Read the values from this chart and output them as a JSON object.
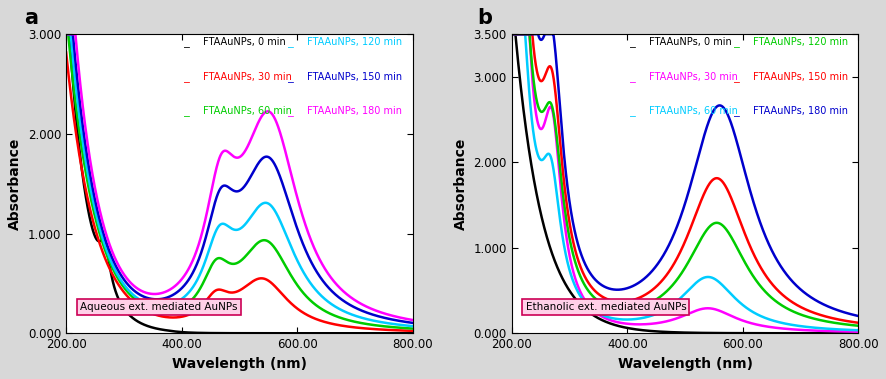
{
  "panel_a": {
    "label": "a",
    "xlabel": "Wavelength (nm)",
    "ylabel": "Absorbance",
    "xlim": [
      200,
      800
    ],
    "ylim": [
      0.0,
      3.0
    ],
    "yticks": [
      0.0,
      1.0,
      2.0,
      3.0
    ],
    "ytick_labels": [
      "0.000",
      "1.000",
      "2.000",
      "3.000"
    ],
    "xticks": [
      200,
      400,
      600,
      800
    ],
    "xtick_labels": [
      "200.00",
      "400.00",
      "600.00",
      "800.00"
    ],
    "box_label": "Aqueous ext. mediated AuNPs",
    "series": [
      {
        "label": "FTAAuNPs, 0 min",
        "color": "#000000"
      },
      {
        "label": "FTAAuNPs, 30 min",
        "color": "#ff0000"
      },
      {
        "label": "FTAAuNPs, 60 min",
        "color": "#00cc00"
      },
      {
        "label": "FTAAuNPs, 120 min",
        "color": "#00ccff"
      },
      {
        "label": "FTAAuNPs, 150 min",
        "color": "#0000cc"
      },
      {
        "label": "FTAAuNPs, 180 min",
        "color": "#ff00ff"
      }
    ],
    "legend": {
      "col1": [
        {
          "label": "FTAAuNPs, 0 min",
          "color": "#000000"
        },
        {
          "label": "FTAAuNPs, 30 min",
          "color": "#ff0000"
        },
        {
          "label": "FTAAuNPs, 60 min",
          "color": "#00cc00"
        }
      ],
      "col2": [
        {
          "label": "FTAAuNPs, 120 min",
          "color": "#00ccff"
        },
        {
          "label": "FTAAuNPs, 150 min",
          "color": "#0000cc"
        },
        {
          "label": "FTAAuNPs, 180 min",
          "color": "#ff00ff"
        }
      ]
    }
  },
  "panel_b": {
    "label": "b",
    "xlabel": "Wavelength (nm)",
    "ylabel": "Absorbance",
    "xlim": [
      200,
      800
    ],
    "ylim": [
      0.0,
      3.5
    ],
    "yticks": [
      0.0,
      1.0,
      2.0,
      3.0,
      3.5
    ],
    "ytick_labels": [
      "0.000",
      "1.000",
      "2.000",
      "3.000",
      "3.500"
    ],
    "xticks": [
      200,
      400,
      600,
      800
    ],
    "xtick_labels": [
      "200.00",
      "400.00",
      "600.00",
      "800.00"
    ],
    "box_label": "Ethanolic ext. mediated AuNPs",
    "series": [
      {
        "label": "FTAAuNPs, 0 min",
        "color": "#000000"
      },
      {
        "label": "FTAAuNPs, 30 min",
        "color": "#ff00ff"
      },
      {
        "label": "FTAAuNPs, 60 min",
        "color": "#00ccff"
      },
      {
        "label": "FTAAuNPs, 120 min",
        "color": "#00cc00"
      },
      {
        "label": "FTAAuNPs, 150 min",
        "color": "#ff0000"
      },
      {
        "label": "FTAAuNPs, 180 min",
        "color": "#0000cc"
      }
    ],
    "legend": {
      "col1": [
        {
          "label": "FTAAuNPs, 0 min",
          "color": "#000000"
        },
        {
          "label": "FTAAuNPs, 30 min",
          "color": "#ff00ff"
        },
        {
          "label": "FTAAuNPs, 60 min",
          "color": "#00ccff"
        }
      ],
      "col2": [
        {
          "label": "FTAAuNPs, 120 min",
          "color": "#00cc00"
        },
        {
          "label": "FTAAuNPs, 150 min",
          "color": "#ff0000"
        },
        {
          "label": "FTAAuNPs, 180 min",
          "color": "#0000cc"
        }
      ]
    }
  }
}
